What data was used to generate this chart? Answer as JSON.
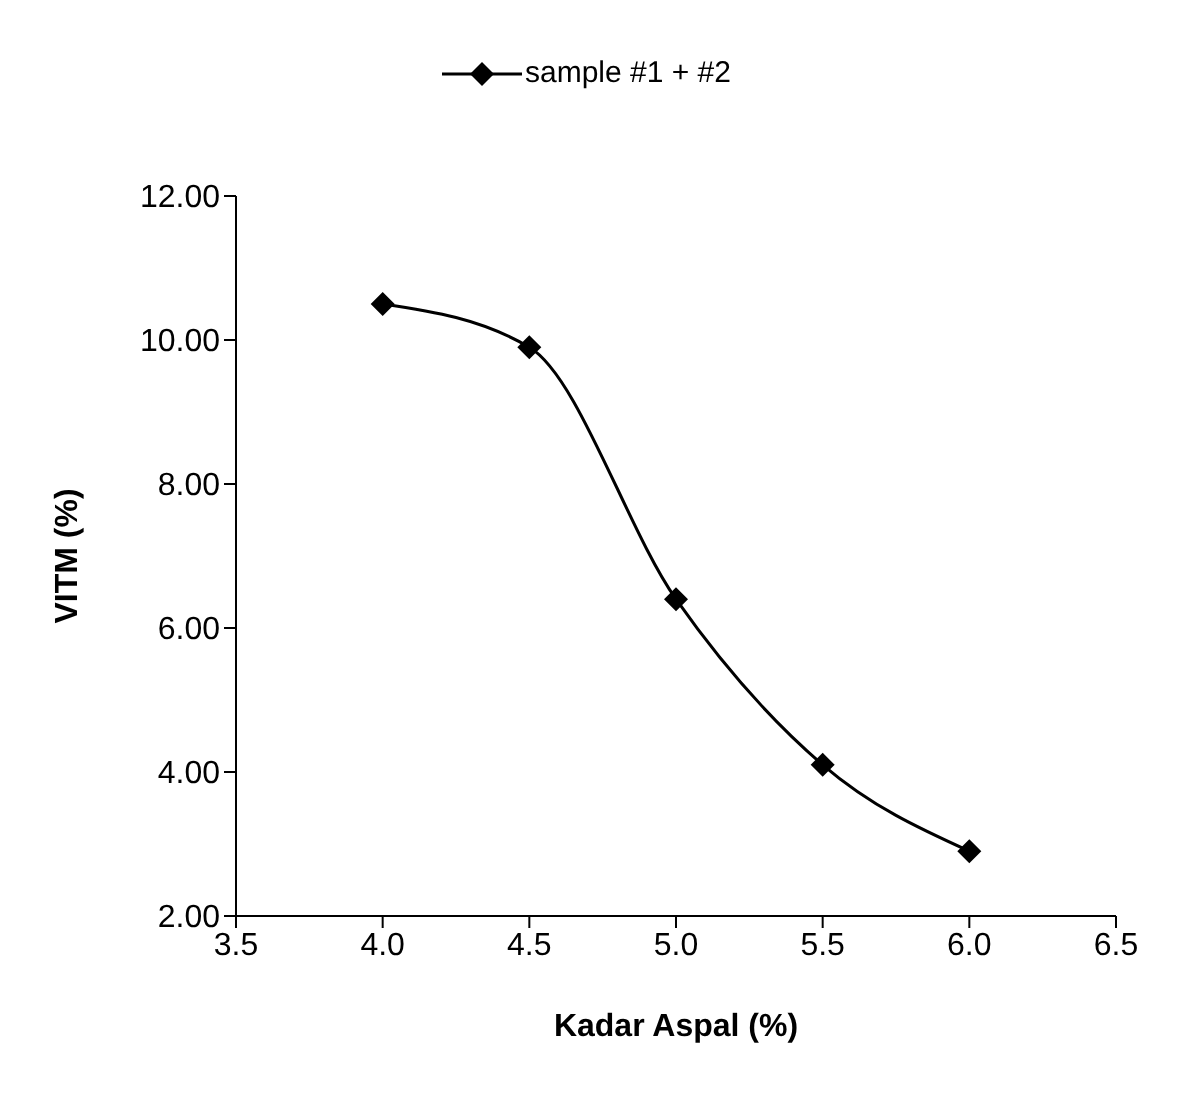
{
  "chart_data": {
    "type": "line",
    "xlabel": "Kadar Aspal (%)",
    "ylabel": "VITM (%)",
    "x": [
      4.0,
      4.5,
      5.0,
      5.5,
      6.0
    ],
    "series": [
      {
        "name": "sample #1 + #2",
        "color": "#000000",
        "values": [
          10.5,
          9.9,
          6.4,
          4.1,
          2.9
        ]
      }
    ],
    "xlim": [
      3.5,
      6.5
    ],
    "xticks": [
      {
        "value": 3.5,
        "label": "3.5"
      },
      {
        "value": 4,
        "label": "4.0"
      },
      {
        "value": 4.5,
        "label": "4.5"
      },
      {
        "value": 5,
        "label": "5.0"
      },
      {
        "value": 5.5,
        "label": "5.5"
      },
      {
        "value": 6,
        "label": "6.0"
      },
      {
        "value": 6.5,
        "label": "6.5"
      }
    ],
    "ylim": [
      2,
      12
    ],
    "yticks": [
      {
        "value": 2,
        "label": "2.00"
      },
      {
        "value": 4,
        "label": "4.00"
      },
      {
        "value": 6,
        "label": "6.00"
      },
      {
        "value": 8,
        "label": "8.00"
      },
      {
        "value": 10,
        "label": "10.00"
      },
      {
        "value": 12,
        "label": "12.00"
      }
    ],
    "legend": "top",
    "marker": "diamond",
    "line_style": "solid",
    "grid": false
  }
}
